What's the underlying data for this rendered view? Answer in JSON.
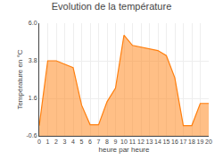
{
  "chart_data": {
    "type": "area",
    "title": "Evolution de la température",
    "xlabel": "heure par heure",
    "ylabel": "Température en °C",
    "x": [
      0,
      1,
      2,
      3,
      4,
      5,
      6,
      7,
      8,
      9,
      10,
      11,
      12,
      13,
      14,
      15,
      16,
      17,
      18,
      19,
      20
    ],
    "values": [
      0.0,
      3.8,
      3.8,
      3.6,
      3.4,
      1.2,
      0.05,
      0.05,
      1.4,
      2.2,
      5.3,
      4.7,
      4.6,
      4.5,
      4.4,
      4.1,
      2.8,
      0.0,
      0.0,
      1.3,
      1.3
    ],
    "xlim": [
      0,
      20
    ],
    "ylim": [
      -0.6,
      6.0
    ],
    "xticks": [
      0,
      1,
      2,
      3,
      4,
      5,
      6,
      7,
      8,
      9,
      10,
      11,
      12,
      13,
      14,
      15,
      16,
      17,
      18,
      19,
      20
    ],
    "yticks": [
      -0.6,
      1.6,
      3.8,
      {
        "value": 6.0,
        "label": "6.0"
      }
    ],
    "grid": true
  }
}
